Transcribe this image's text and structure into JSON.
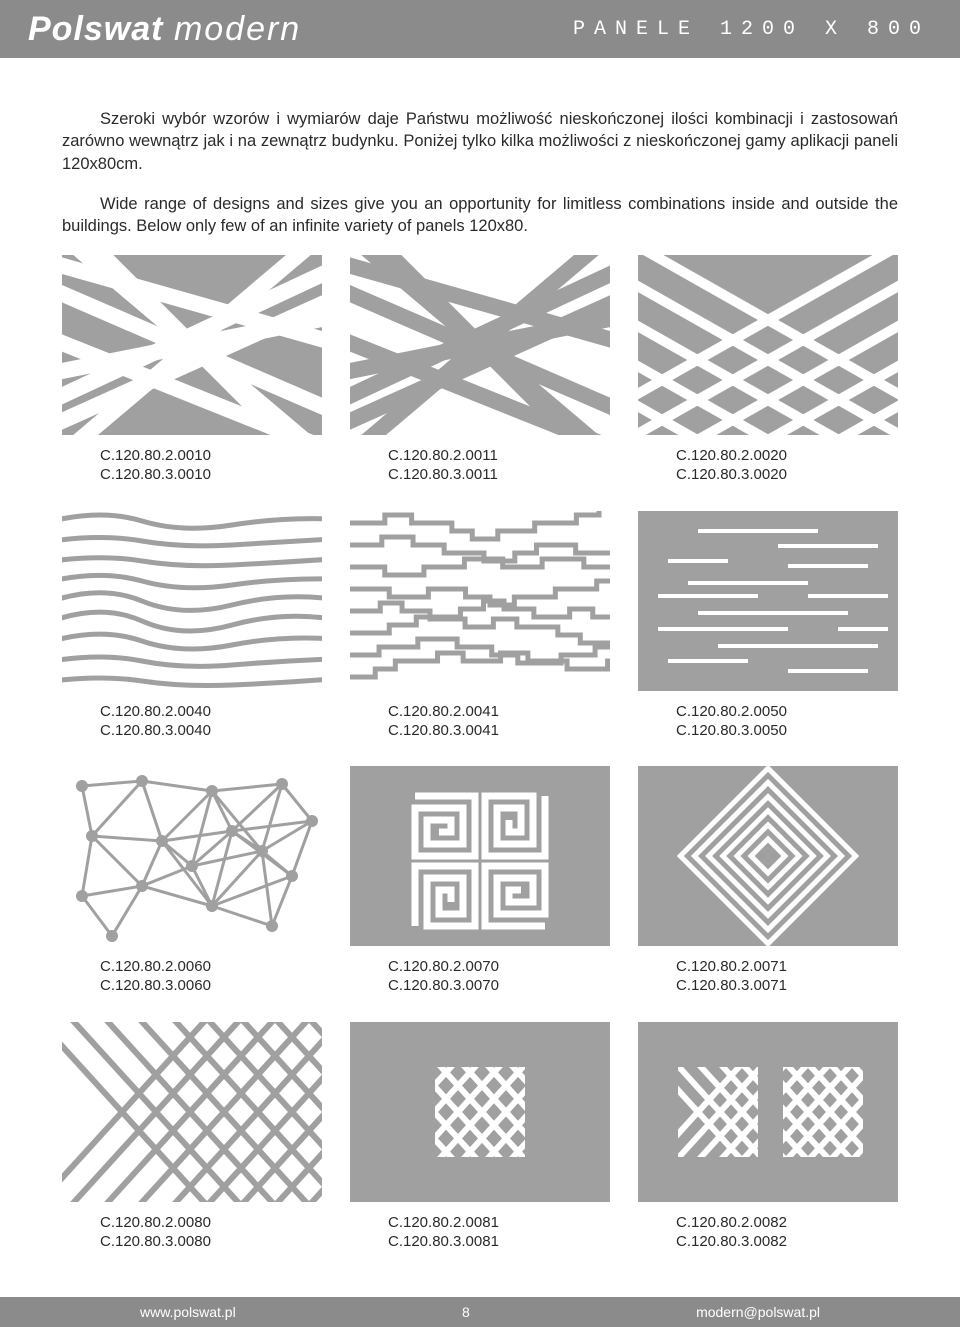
{
  "colors": {
    "header_bg": "#8b8b8b",
    "tile_bg": "#a0a0a0",
    "tile_fg": "#ffffff",
    "text": "#2a2a2a"
  },
  "header": {
    "logo_bold": "Polswat",
    "logo_thin": "modern",
    "title": "PANELE 1200 X 800"
  },
  "paragraphs": {
    "p1": "Szeroki wybór wzorów i wymiarów daje Państwu możliwość nieskończonej ilości kombinacji i zastosowań zarówno wewnątrz jak i na zewnątrz budynku. Poniżej tylko kilka możliwości z nieskończonej gamy aplikacji paneli 120x80cm.",
    "p2": "Wide range of designs and sizes give you an opportunity for limitless combinations inside and outside the buildings. Below only few of an infinite variety of panels 120x80."
  },
  "panels": [
    {
      "code1": "C.120.80.2.0010",
      "code2": "C.120.80.3.0010",
      "pattern": "cross-lines"
    },
    {
      "code1": "C.120.80.2.0011",
      "code2": "C.120.80.3.0011",
      "pattern": "cross-lines-inverse"
    },
    {
      "code1": "C.120.80.2.0020",
      "code2": "C.120.80.3.0020",
      "pattern": "diamond-grid"
    },
    {
      "code1": "C.120.80.2.0040",
      "code2": "C.120.80.3.0040",
      "pattern": "wavy-lines"
    },
    {
      "code1": "C.120.80.2.0041",
      "code2": "C.120.80.3.0041",
      "pattern": "step-lines"
    },
    {
      "code1": "C.120.80.2.0050",
      "code2": "C.120.80.3.0050",
      "pattern": "hlines"
    },
    {
      "code1": "C.120.80.2.0060",
      "code2": "C.120.80.3.0060",
      "pattern": "mesh-dots"
    },
    {
      "code1": "C.120.80.2.0070",
      "code2": "C.120.80.3.0070",
      "pattern": "meander"
    },
    {
      "code1": "C.120.80.2.0071",
      "code2": "C.120.80.3.0071",
      "pattern": "square-diamond"
    },
    {
      "code1": "C.120.80.2.0080",
      "code2": "C.120.80.3.0080",
      "pattern": "lattice-full"
    },
    {
      "code1": "C.120.80.2.0081",
      "code2": "C.120.80.3.0081",
      "pattern": "lattice-1"
    },
    {
      "code1": "C.120.80.2.0082",
      "code2": "C.120.80.3.0082",
      "pattern": "lattice-2"
    }
  ],
  "footer": {
    "left": "www.polswat.pl",
    "page": "8",
    "right": "modern@polswat.pl"
  }
}
